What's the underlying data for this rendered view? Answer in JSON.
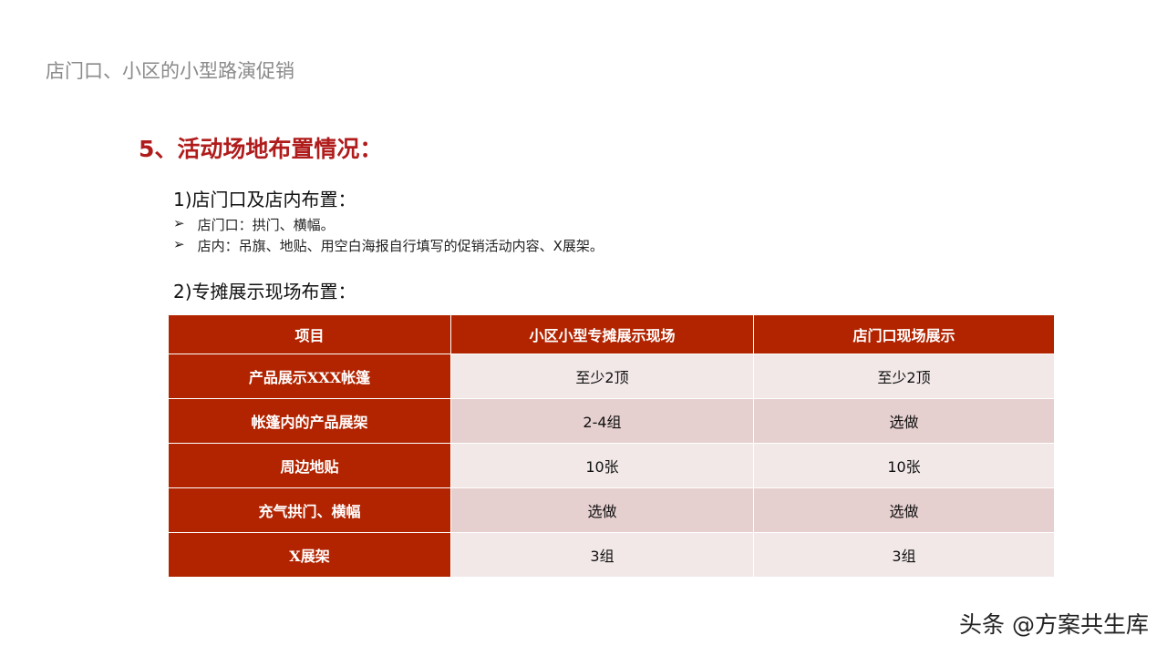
{
  "top_title": "店门口、小区的小型路演促销",
  "heading": "5、活动场地布置情况：",
  "section1": {
    "title": "1)店门口及店内布置：",
    "bullets": [
      "店门口：拱门、横幅。",
      "店内：吊旗、地贴、用空白海报自行填写的促销活动内容、X展架。"
    ],
    "bullet_icon": "arrow-bullet-icon"
  },
  "section2": {
    "title": "2)专摊展示现场布置："
  },
  "table": {
    "headers": [
      "项目",
      "小区小型专摊展示现场",
      "店门口现场展示"
    ],
    "rows": [
      [
        "产品展示XXX帐篷",
        "至少2顶",
        "至少2顶"
      ],
      [
        "帐篷内的产品展架",
        "2-4组",
        "选做"
      ],
      [
        "周边地贴",
        "10张",
        "10张"
      ],
      [
        "充气拱门、横幅",
        "选做",
        "选做"
      ],
      [
        "X展架",
        "3组",
        "3组"
      ]
    ]
  },
  "watermark": "头条 @方案共生库",
  "colors": {
    "header": "#b22400",
    "row_light": "#f2e8e8",
    "row_dark": "#e6cfcf",
    "heading": "#b01c1c"
  }
}
